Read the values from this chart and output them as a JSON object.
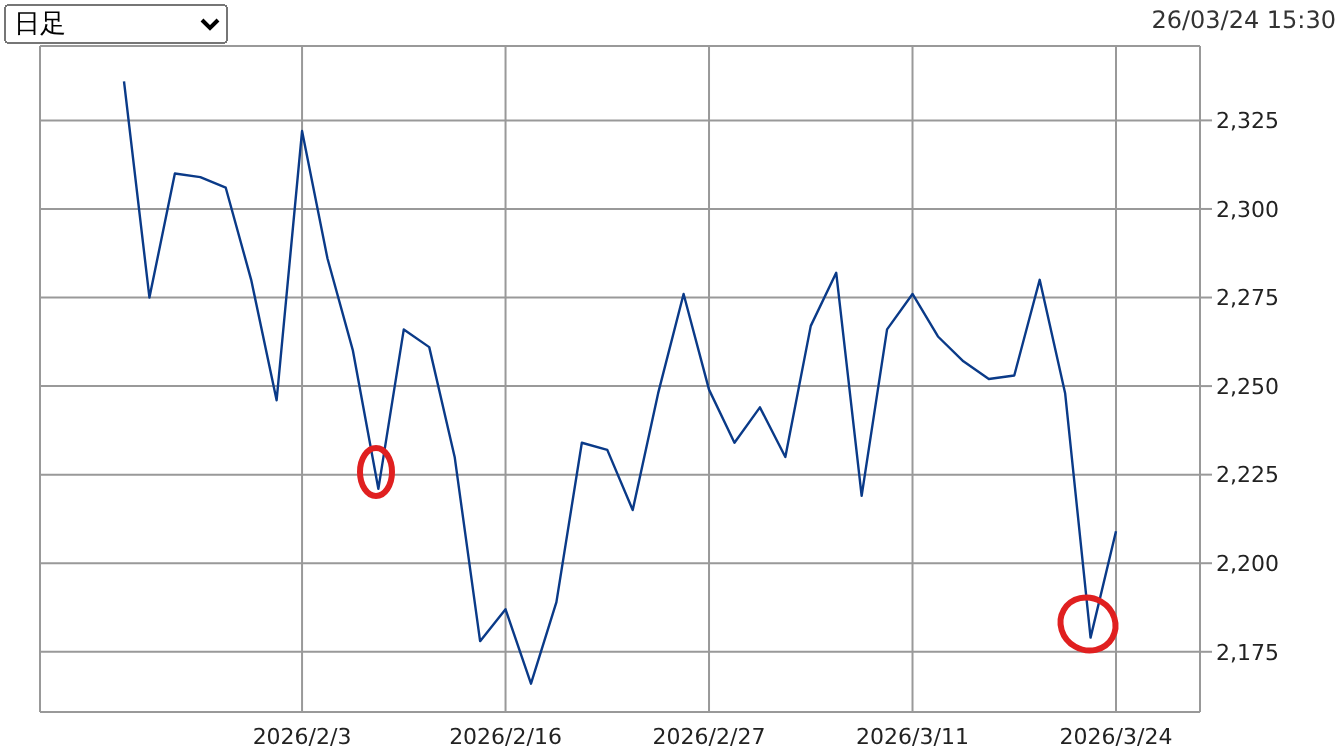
{
  "chart_data": {
    "type": "line",
    "annotations": [
      "日足",
      "26/03/24 15:30"
    ],
    "categories": [
      null,
      null,
      null,
      null,
      null,
      null,
      null,
      "2026/2/3",
      null,
      null,
      null,
      null,
      null,
      null,
      null,
      "2026/2/16",
      null,
      null,
      null,
      null,
      null,
      null,
      null,
      "2026/2/27",
      null,
      null,
      null,
      null,
      null,
      null,
      null,
      "2026/3/11",
      null,
      null,
      null,
      null,
      null,
      null,
      null,
      "2026/3/24"
    ],
    "series": [
      {
        "color": "#0a3a88",
        "values": [
          2336,
          2275,
          2310,
          2309,
          2306,
          2280,
          2246,
          2322,
          2286,
          2260,
          2221,
          2266,
          2261,
          2230,
          2178,
          2187,
          2166,
          2189,
          2234,
          2232,
          2215,
          2248,
          2276,
          2249,
          2234,
          2244,
          2230,
          2267,
          2282,
          2219,
          2266,
          2276,
          2264,
          2257,
          2252,
          2253,
          2280,
          2248,
          2179,
          2209
        ]
      }
    ],
    "ylim": [
      2158,
      2346
    ],
    "yticks": [
      {
        "value": 2175,
        "label": "2,175"
      },
      {
        "value": 2200,
        "label": "2,200"
      },
      {
        "value": 2225,
        "label": "2,225"
      },
      {
        "value": 2250,
        "label": "2,250"
      },
      {
        "value": 2275,
        "label": "2,275"
      },
      {
        "value": 2300,
        "label": "2,300"
      },
      {
        "value": 2325,
        "label": "2,325"
      }
    ],
    "grid": true,
    "marker": "none",
    "line_style": "solid"
  }
}
